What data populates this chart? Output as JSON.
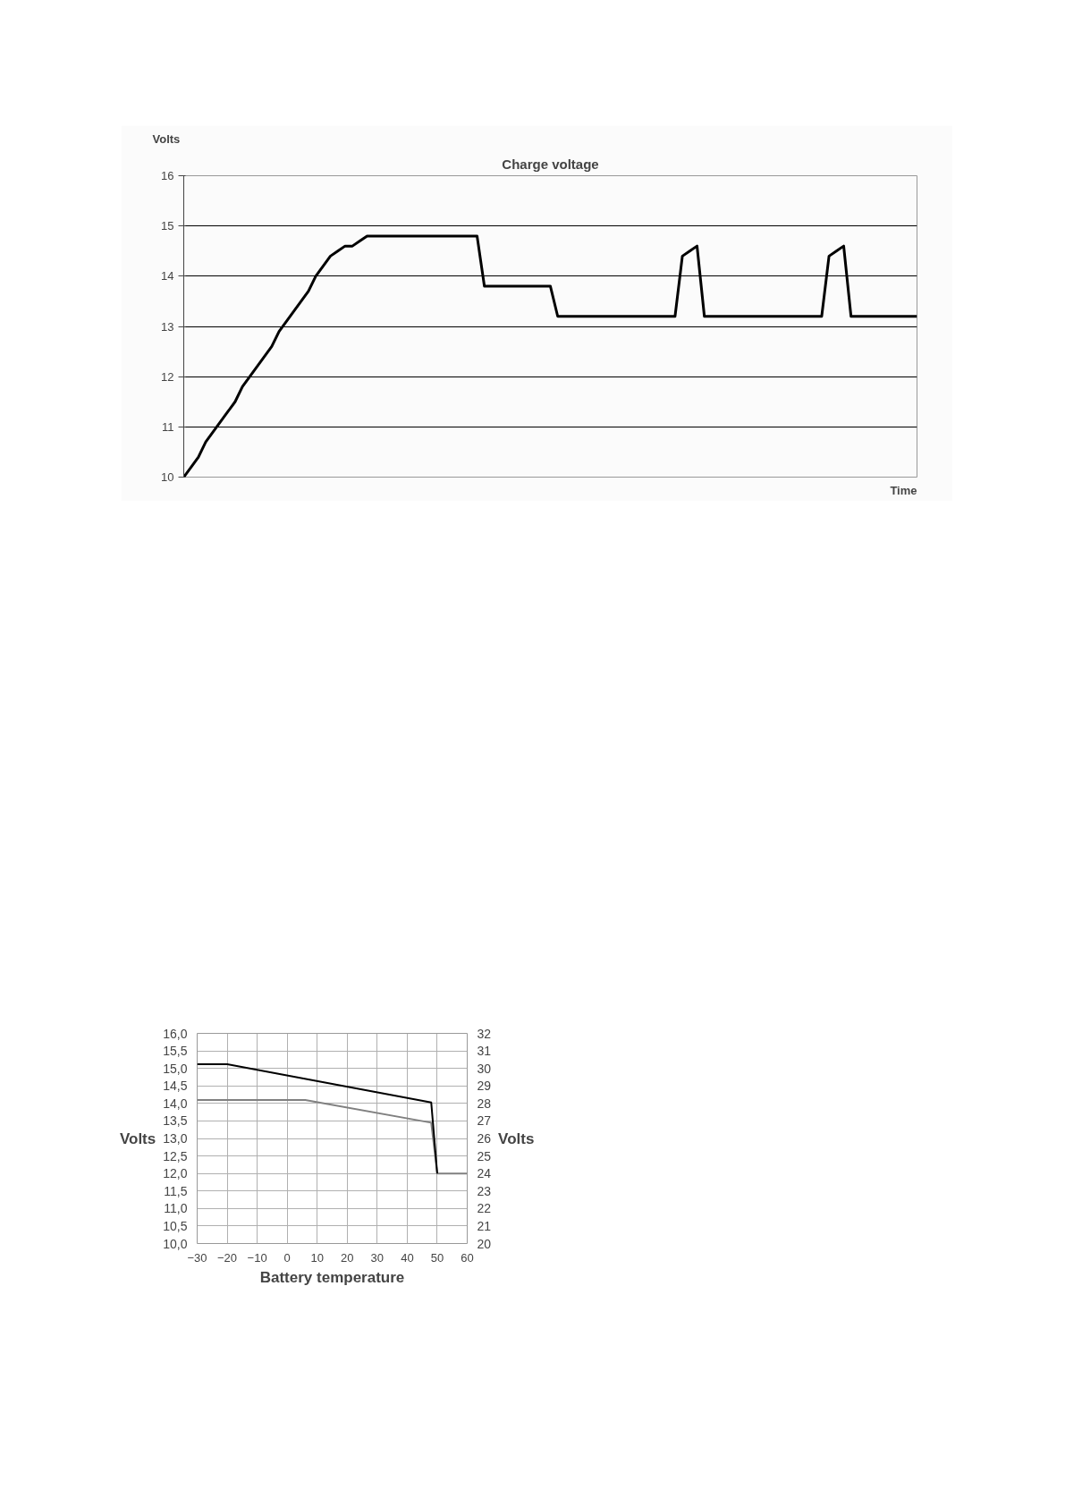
{
  "chart_data": [
    {
      "type": "line",
      "title": "Charge voltage",
      "ylabel": "Volts",
      "xlabel": "Time",
      "categories": [
        null,
        null,
        null,
        null,
        null,
        null,
        null,
        null,
        null,
        null,
        null,
        null,
        null,
        null,
        null,
        null,
        null,
        null,
        null,
        null,
        null,
        null,
        null,
        null,
        null,
        null,
        null,
        null,
        null,
        null,
        null,
        null,
        null,
        null,
        null,
        null,
        null,
        null,
        null,
        null,
        null,
        null,
        null,
        null,
        null,
        null,
        null,
        null,
        null,
        null,
        null,
        null,
        null,
        null,
        null,
        null,
        null,
        null,
        null,
        null,
        null,
        null,
        null,
        null,
        null,
        null,
        null,
        null,
        null,
        null,
        null,
        null,
        null,
        null,
        null,
        null,
        null,
        null,
        null,
        null,
        null,
        null,
        null,
        null,
        null,
        null,
        null,
        null,
        null,
        null,
        null,
        null,
        null,
        null,
        null,
        null,
        null,
        null,
        null,
        null,
        null
      ],
      "series": [
        {
          "color": "#000000",
          "values": [
            10.0,
            10.2,
            10.4,
            10.7,
            10.9,
            11.1,
            11.3,
            11.5,
            11.8,
            12.0,
            12.2,
            12.4,
            12.6,
            12.9,
            13.1,
            13.3,
            13.5,
            13.7,
            14.0,
            14.2,
            14.4,
            14.5,
            14.6,
            14.6,
            14.7,
            14.8,
            14.8,
            14.8,
            14.8,
            14.8,
            14.8,
            14.8,
            14.8,
            14.8,
            14.8,
            14.8,
            14.8,
            14.8,
            14.8,
            14.8,
            14.8,
            13.8,
            13.8,
            13.8,
            13.8,
            13.8,
            13.8,
            13.8,
            13.8,
            13.8,
            13.8,
            13.2,
            13.2,
            13.2,
            13.2,
            13.2,
            13.2,
            13.2,
            13.2,
            13.2,
            13.2,
            13.2,
            13.2,
            13.2,
            13.2,
            13.2,
            13.2,
            13.2,
            14.4,
            14.5,
            14.6,
            13.2,
            13.2,
            13.2,
            13.2,
            13.2,
            13.2,
            13.2,
            13.2,
            13.2,
            13.2,
            13.2,
            13.2,
            13.2,
            13.2,
            13.2,
            13.2,
            13.2,
            14.4,
            14.5,
            14.6,
            13.2,
            13.2,
            13.2,
            13.2,
            13.2,
            13.2,
            13.2,
            13.2,
            13.2,
            13.2
          ]
        }
      ],
      "ylim": [
        10,
        16
      ],
      "yticks": [
        10,
        11,
        12,
        13,
        14,
        15,
        16
      ],
      "grid": "y",
      "tick_labels": "y"
    },
    {
      "type": "line",
      "ylabel": "Volts",
      "y2label": "Volts",
      "xlabel": "Battery temperature",
      "series": [
        {
          "color": "#808080",
          "x": [
            -30,
            6,
            48,
            50,
            60
          ],
          "values": [
            14.1,
            14.1,
            13.45,
            12.0,
            12.0
          ]
        },
        {
          "color": "#000000",
          "x": [
            -30,
            -20,
            48,
            50
          ],
          "values": [
            15.12,
            15.12,
            14.03,
            12.0
          ]
        }
      ],
      "xlim": [
        -30,
        60
      ],
      "xticks": [
        -30,
        -20,
        -10,
        0,
        10,
        20,
        30,
        40,
        50,
        60
      ],
      "ylim": [
        10,
        16
      ],
      "yticks": [
        {
          "value": 10,
          "label": "10,0"
        },
        {
          "value": 10.5,
          "label": "10,5"
        },
        {
          "value": 11,
          "label": "11,0"
        },
        {
          "value": 11.5,
          "label": "11,5"
        },
        {
          "value": 12,
          "label": "12,0"
        },
        {
          "value": 12.5,
          "label": "12,5"
        },
        {
          "value": 13,
          "label": "13,0"
        },
        {
          "value": 13.5,
          "label": "13,5"
        },
        {
          "value": 14,
          "label": "14,0"
        },
        {
          "value": 14.5,
          "label": "14,5"
        },
        {
          "value": 15,
          "label": "15,0"
        },
        {
          "value": 15.5,
          "label": "15,5"
        },
        {
          "value": 16,
          "label": "16,0"
        }
      ],
      "y2lim": [
        20,
        32
      ],
      "y2ticks": [
        20,
        21,
        22,
        23,
        24,
        25,
        26,
        27,
        28,
        29,
        30,
        31,
        32
      ],
      "grid": true
    }
  ]
}
